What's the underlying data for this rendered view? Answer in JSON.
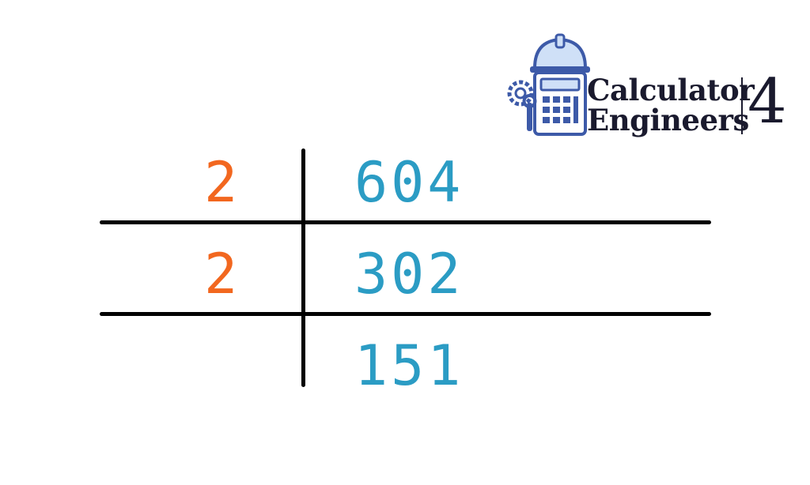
{
  "logo": {
    "line1": "Calculator",
    "line2": "Engineers",
    "number": "4",
    "icon": "calculator-with-hardhat-icon",
    "colors": {
      "primary": "#3d5aa8",
      "dark": "#1a1a2e",
      "light": "#cfe0f7"
    }
  },
  "factorization": {
    "colors": {
      "divisor": "#f2671f",
      "quotient": "#2b9cc4",
      "lines": "#000000"
    },
    "rows": [
      {
        "divisor": "2",
        "value": "604"
      },
      {
        "divisor": "2",
        "value": "302"
      },
      {
        "divisor": "",
        "value": "151"
      }
    ]
  }
}
